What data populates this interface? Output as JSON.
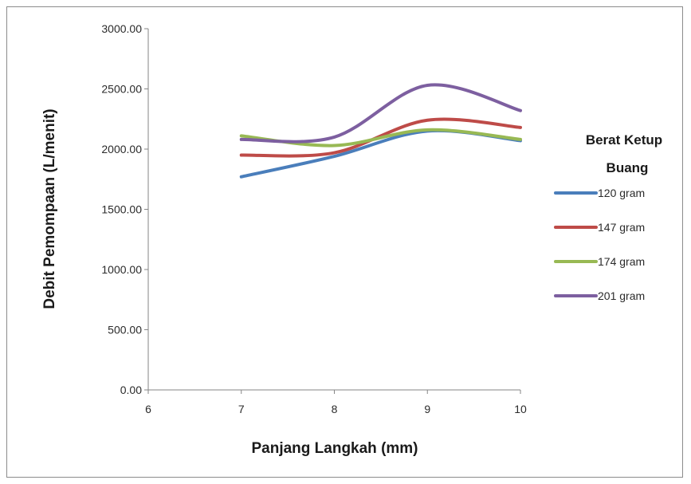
{
  "chart_data": {
    "type": "line",
    "title": "",
    "xlabel": "Panjang Langkah (mm)",
    "ylabel": "Debit Pemompaan (L/menit)",
    "xlim": [
      6,
      10
    ],
    "ylim": [
      0,
      3000
    ],
    "x_ticks": [
      "6",
      "7",
      "8",
      "9",
      "10"
    ],
    "y_ticks": [
      "0.00",
      "500.00",
      "1000.00",
      "1500.00",
      "2000.00",
      "2500.00",
      "3000.00"
    ],
    "x": [
      7,
      8,
      9,
      10
    ],
    "legend_title": "Berat Ketup Buang",
    "legend_title_lines": [
      "Berat Ketup",
      "Buang"
    ],
    "legend_position": "right",
    "grid": false,
    "series": [
      {
        "name": "120 gram",
        "color": "#4a7ebb",
        "values": [
          1770,
          1940,
          2150,
          2070
        ]
      },
      {
        "name": "147 gram",
        "color": "#be4b48",
        "values": [
          1950,
          1970,
          2240,
          2180
        ]
      },
      {
        "name": "174 gram",
        "color": "#98b954",
        "values": [
          2110,
          2030,
          2160,
          2080
        ]
      },
      {
        "name": "201 gram",
        "color": "#7d5fa0",
        "values": [
          2080,
          2100,
          2530,
          2320
        ]
      }
    ]
  }
}
